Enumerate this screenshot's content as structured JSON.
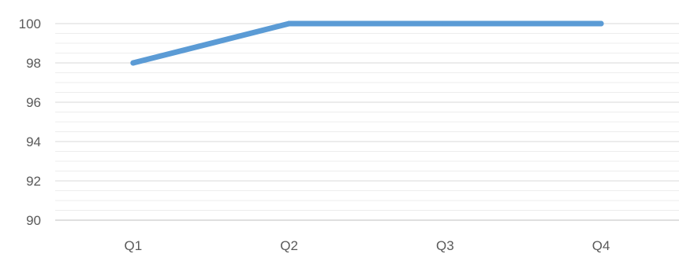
{
  "chart_data": {
    "type": "line",
    "categories": [
      "Q1",
      "Q2",
      "Q3",
      "Q4"
    ],
    "series": [
      {
        "values": [
          98,
          100,
          100,
          100
        ],
        "color": "#5b9bd5"
      }
    ],
    "title": "",
    "xlabel": "",
    "ylabel": "",
    "ylim": [
      90,
      100
    ],
    "yticks": [
      90,
      92,
      94,
      96,
      98,
      100
    ],
    "y_minor_step": 0.5,
    "grid": true,
    "legend": "none"
  }
}
